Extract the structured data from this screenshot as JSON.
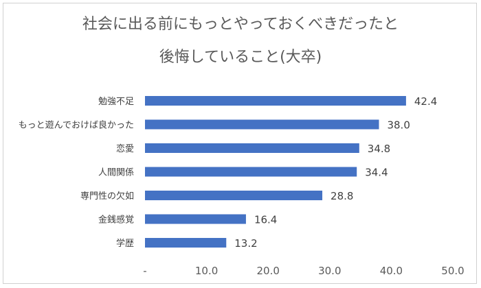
{
  "chart_data": {
    "type": "bar",
    "orientation": "horizontal",
    "title_lines": [
      "社会に出る前にもっとやっておくべきだったと",
      "後悔していること(大卒)"
    ],
    "categories": [
      "勉強不足",
      "もっと遊んでおけば良かった",
      "恋愛",
      "人間関係",
      "専門性の欠如",
      "金銭感覚",
      "学歴"
    ],
    "values": [
      42.4,
      38.0,
      34.8,
      34.4,
      28.8,
      16.4,
      13.2
    ],
    "value_labels": [
      "42.4",
      "38.0",
      "34.8",
      "34.4",
      "28.8",
      "16.4",
      "13.2"
    ],
    "xlim": [
      0,
      50
    ],
    "x_ticks": [
      0,
      10,
      20,
      30,
      40,
      50
    ],
    "x_tick_labels": [
      "-",
      "10.0",
      "20.0",
      "30.0",
      "40.0",
      "50.0"
    ],
    "bar_color": "#4472c4",
    "grid": false,
    "legend": "none"
  }
}
